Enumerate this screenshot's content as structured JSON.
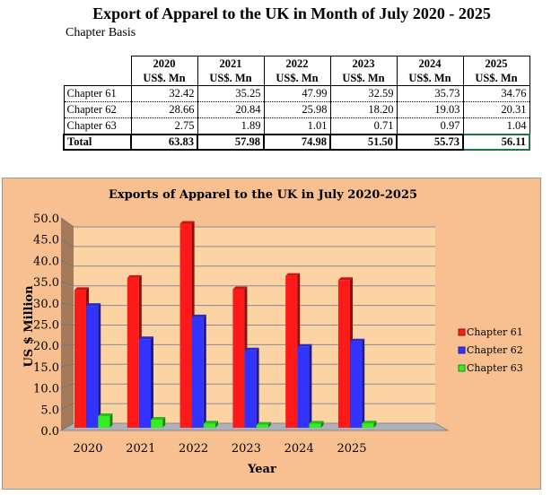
{
  "title": "Export of Apparel to the UK in Month of July 2020 - 2025",
  "subtitle": "Chapter Basis",
  "table": {
    "years": [
      "2020",
      "2021",
      "2022",
      "2023",
      "2024",
      "2025"
    ],
    "unit": "US$. Mn",
    "rows": [
      {
        "label": "Chapter 61",
        "values": [
          "32.42",
          "35.25",
          "47.99",
          "32.59",
          "35.73",
          "34.76"
        ]
      },
      {
        "label": "Chapter 62",
        "values": [
          "28.66",
          "20.84",
          "25.98",
          "18.20",
          "19.03",
          "20.31"
        ]
      },
      {
        "label": "Chapter 63",
        "values": [
          "2.75",
          "1.89",
          "1.01",
          "0.71",
          "0.97",
          "1.04"
        ]
      }
    ],
    "total": {
      "label": "Total",
      "values": [
        "63.83",
        "57.98",
        "74.98",
        "51.50",
        "55.73",
        "56.11"
      ]
    }
  },
  "chart_data": {
    "type": "bar",
    "title": "Exports of Apparel to the UK in July 2020-2025",
    "xlabel": "Year",
    "ylabel": "US $ Million",
    "categories": [
      "2020",
      "2021",
      "2022",
      "2023",
      "2024",
      "2025"
    ],
    "ylim": [
      0,
      50
    ],
    "yticks": [
      "0.0",
      "5.0",
      "10.0",
      "15.0",
      "20.0",
      "25.0",
      "30.0",
      "35.0",
      "40.0",
      "45.0",
      "50.0"
    ],
    "grid": true,
    "legend": "right",
    "series": [
      {
        "name": "Chapter 61",
        "color": "#ff1a1a",
        "values": [
          32.42,
          35.25,
          47.99,
          32.59,
          35.73,
          34.76
        ]
      },
      {
        "name": "Chapter 62",
        "color": "#3333ff",
        "values": [
          28.66,
          20.84,
          25.98,
          18.2,
          19.03,
          20.31
        ]
      },
      {
        "name": "Chapter 63",
        "color": "#33ee22",
        "values": [
          2.75,
          1.89,
          1.01,
          0.71,
          0.97,
          1.04
        ]
      }
    ]
  }
}
